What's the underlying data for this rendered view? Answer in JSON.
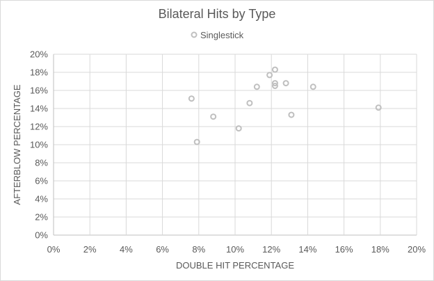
{
  "chart_data": {
    "type": "scatter",
    "title": "Bilateral Hits by Type",
    "xlabel": "DOUBLE HIT PERCENTAGE",
    "ylabel": "AFTERBLOW PERCENTAGE",
    "xlim": [
      0,
      0.2
    ],
    "ylim": [
      0,
      0.2
    ],
    "x_ticks": [
      "0%",
      "2%",
      "4%",
      "6%",
      "8%",
      "10%",
      "12%",
      "14%",
      "16%",
      "18%",
      "20%"
    ],
    "y_ticks": [
      "0%",
      "2%",
      "4%",
      "6%",
      "8%",
      "10%",
      "12%",
      "14%",
      "16%",
      "18%",
      "20%"
    ],
    "grid": true,
    "legend": "top",
    "series": [
      {
        "name": "Singlestick",
        "color": "#bfbfbf",
        "points": [
          {
            "x": 0.076,
            "y": 0.151
          },
          {
            "x": 0.079,
            "y": 0.103
          },
          {
            "x": 0.088,
            "y": 0.131
          },
          {
            "x": 0.102,
            "y": 0.118
          },
          {
            "x": 0.108,
            "y": 0.146
          },
          {
            "x": 0.112,
            "y": 0.164
          },
          {
            "x": 0.119,
            "y": 0.177
          },
          {
            "x": 0.122,
            "y": 0.183
          },
          {
            "x": 0.122,
            "y": 0.168
          },
          {
            "x": 0.122,
            "y": 0.165
          },
          {
            "x": 0.128,
            "y": 0.168
          },
          {
            "x": 0.131,
            "y": 0.133
          },
          {
            "x": 0.143,
            "y": 0.164
          },
          {
            "x": 0.179,
            "y": 0.141
          }
        ]
      }
    ]
  }
}
